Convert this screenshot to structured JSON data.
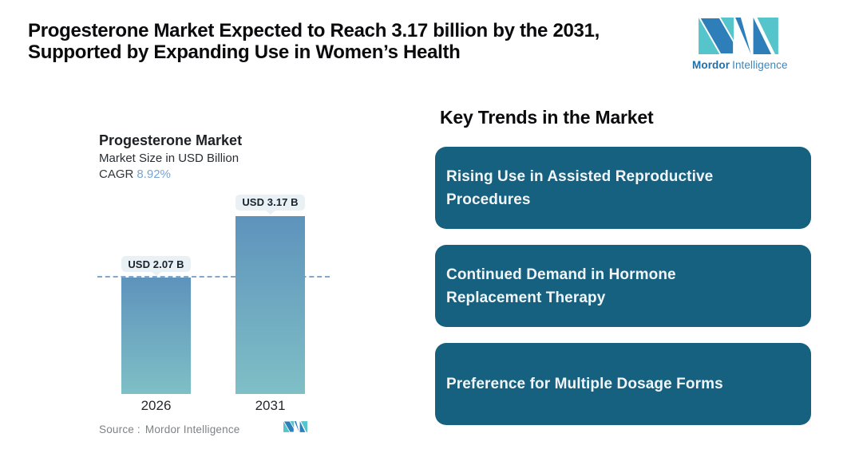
{
  "header": {
    "title_line1": "Progesterone Market Expected to Reach 3.17 billion by the 2031,",
    "title_line2": "Supported by Expanding Use in Women’s Health"
  },
  "brand": {
    "name_bold": "Mordor",
    "name_regular": "Intelligence",
    "teal": "#55c4cb",
    "blue": "#2e7fb9"
  },
  "chart": {
    "title": "Progesterone Market",
    "subtitle": "Market Size in USD Billion",
    "cagr_label": "CAGR",
    "cagr_value": "8.92%",
    "source_label": "Source :",
    "source_value": "Mordor Intelligence"
  },
  "chart_data": {
    "type": "bar",
    "title": "Progesterone Market",
    "subtitle": "Market Size in USD Billion",
    "unit": "USD Billion",
    "cagr": "8.92%",
    "categories": [
      "2026",
      "2031"
    ],
    "values": [
      2.07,
      3.17
    ],
    "value_labels": [
      "USD 2.07 B",
      "USD 3.17 B"
    ],
    "reference_line_at": 2.07,
    "reference_line_style": "dashed",
    "reference_line_color": "#84a7cb",
    "bar_gradient_top": "#5e93bc",
    "bar_gradient_bottom": "#7fbfc6",
    "label_pill_bg": "#e9f1f5",
    "ylim": [
      0,
      3.5
    ],
    "grid": false,
    "legend": false
  },
  "trends": {
    "heading": "Key Trends in the Market",
    "card_bg": "#16617f",
    "items": [
      {
        "text": "Rising Use in Assisted Reproductive Procedures",
        "line1": "Rising Use in Assisted Reproductive",
        "line2": "Procedures"
      },
      {
        "text": "Continued Demand in Hormone Replacement Therapy",
        "line1": "Continued Demand in Hormone",
        "line2": "Replacement Therapy"
      },
      {
        "text": "Preference for Multiple Dosage Forms",
        "line1": "Preference for Multiple Dosage Forms",
        "line2": ""
      }
    ]
  }
}
